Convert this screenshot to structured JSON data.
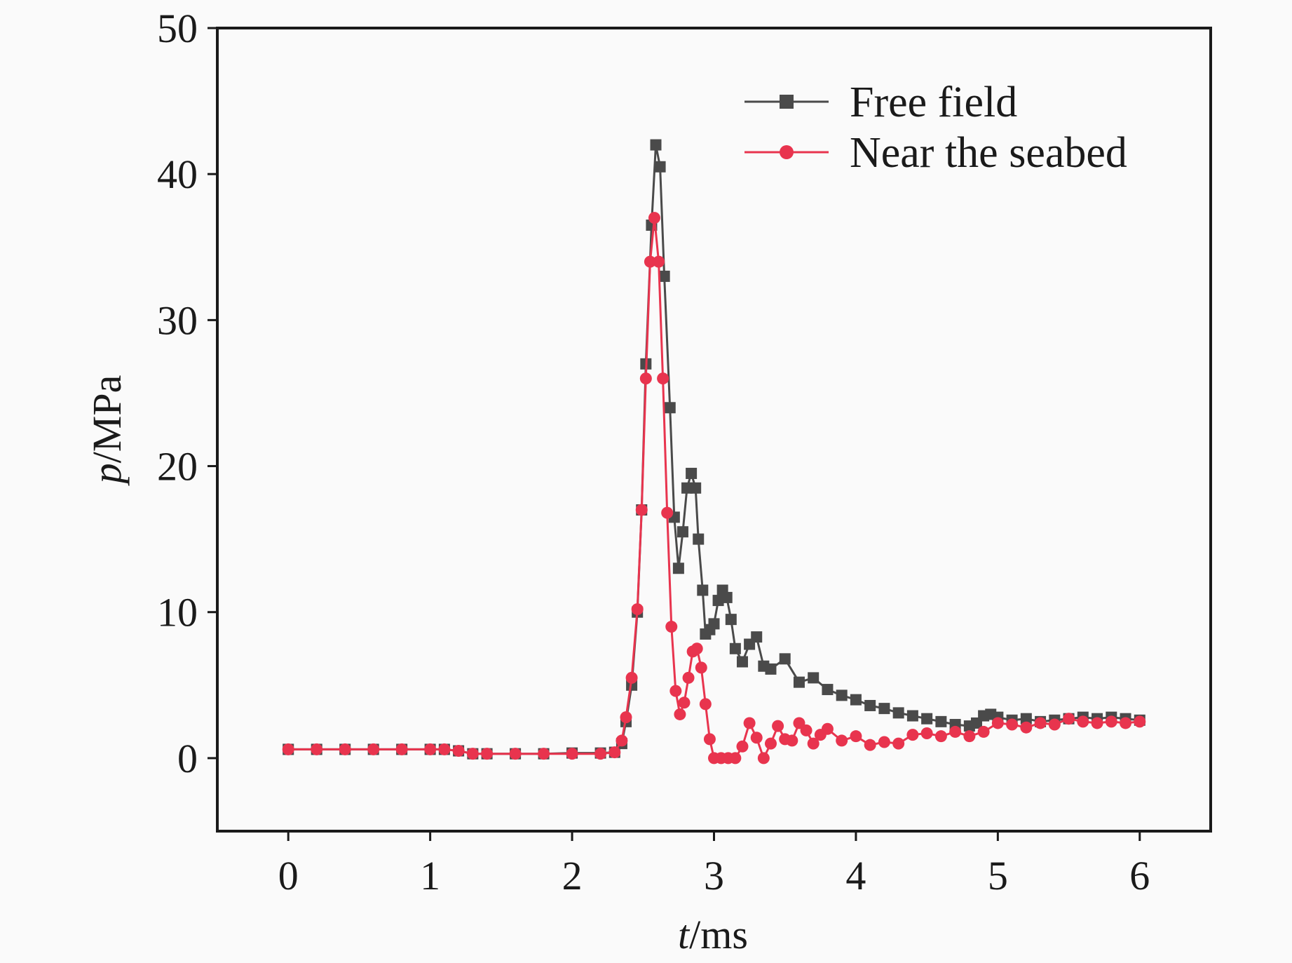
{
  "chart_data": {
    "type": "line",
    "title": "",
    "xlabel_var": "t",
    "xlabel_unit": "/ms",
    "ylabel_var": "p",
    "ylabel_unit": "/MPa",
    "xlim": [
      -0.5,
      6.5
    ],
    "ylim": [
      -5,
      50
    ],
    "xticks": [
      0,
      1,
      2,
      3,
      4,
      5,
      6
    ],
    "yticks": [
      0,
      10,
      20,
      30,
      40,
      50
    ],
    "xtick_labels": [
      "0",
      "1",
      "2",
      "3",
      "4",
      "5",
      "6"
    ],
    "ytick_labels": [
      "0",
      "10",
      "20",
      "30",
      "40",
      "50"
    ],
    "legend_position": "top-right",
    "grid": false,
    "series": [
      {
        "name": "Free field",
        "color": "#4a4a4a",
        "marker": "square",
        "x": [
          0,
          0.2,
          0.4,
          0.6,
          0.8,
          1.0,
          1.1,
          1.2,
          1.3,
          1.4,
          1.6,
          1.8,
          2.0,
          2.2,
          2.3,
          2.35,
          2.38,
          2.42,
          2.46,
          2.49,
          2.52,
          2.56,
          2.59,
          2.62,
          2.65,
          2.69,
          2.72,
          2.75,
          2.78,
          2.81,
          2.84,
          2.87,
          2.89,
          2.92,
          2.94,
          2.97,
          3.0,
          3.03,
          3.06,
          3.09,
          3.12,
          3.15,
          3.2,
          3.25,
          3.3,
          3.35,
          3.4,
          3.5,
          3.6,
          3.7,
          3.8,
          3.9,
          4.0,
          4.1,
          4.2,
          4.3,
          4.4,
          4.5,
          4.6,
          4.7,
          4.8,
          4.85,
          4.9,
          4.95,
          5.0,
          5.1,
          5.2,
          5.3,
          5.4,
          5.5,
          5.6,
          5.7,
          5.8,
          5.9,
          6.0
        ],
        "y": [
          0.6,
          0.6,
          0.6,
          0.6,
          0.6,
          0.6,
          0.6,
          0.5,
          0.3,
          0.3,
          0.3,
          0.3,
          0.35,
          0.35,
          0.4,
          1.0,
          2.5,
          5.0,
          10.0,
          17.0,
          27.0,
          36.5,
          42.0,
          40.5,
          33.0,
          24.0,
          16.5,
          13.0,
          15.5,
          18.5,
          19.5,
          18.5,
          15.0,
          11.5,
          8.5,
          8.8,
          9.2,
          10.8,
          11.5,
          11.0,
          9.5,
          7.5,
          6.6,
          7.8,
          8.3,
          6.3,
          6.1,
          6.8,
          5.2,
          5.5,
          4.7,
          4.3,
          4.0,
          3.6,
          3.4,
          3.1,
          2.9,
          2.7,
          2.5,
          2.3,
          2.2,
          2.4,
          2.9,
          3.0,
          2.8,
          2.6,
          2.7,
          2.5,
          2.6,
          2.7,
          2.8,
          2.7,
          2.8,
          2.7,
          2.6
        ]
      },
      {
        "name": "Near the seabed",
        "color": "#e8344e",
        "marker": "circle",
        "x": [
          0,
          0.2,
          0.4,
          0.6,
          0.8,
          1.0,
          1.1,
          1.2,
          1.3,
          1.4,
          1.6,
          1.8,
          2.0,
          2.2,
          2.3,
          2.35,
          2.38,
          2.42,
          2.46,
          2.49,
          2.52,
          2.55,
          2.58,
          2.61,
          2.64,
          2.67,
          2.7,
          2.73,
          2.76,
          2.79,
          2.82,
          2.85,
          2.88,
          2.91,
          2.94,
          2.97,
          3.0,
          3.05,
          3.1,
          3.15,
          3.2,
          3.25,
          3.3,
          3.35,
          3.4,
          3.45,
          3.5,
          3.55,
          3.6,
          3.65,
          3.7,
          3.75,
          3.8,
          3.9,
          4.0,
          4.1,
          4.2,
          4.3,
          4.4,
          4.5,
          4.6,
          4.7,
          4.8,
          4.9,
          5.0,
          5.1,
          5.2,
          5.3,
          5.4,
          5.5,
          5.6,
          5.7,
          5.8,
          5.9,
          6.0
        ],
        "y": [
          0.6,
          0.6,
          0.6,
          0.6,
          0.6,
          0.6,
          0.6,
          0.5,
          0.3,
          0.3,
          0.3,
          0.3,
          0.3,
          0.3,
          0.4,
          1.2,
          2.8,
          5.5,
          10.2,
          17.0,
          26.0,
          34.0,
          37.0,
          34.0,
          26.0,
          16.8,
          9.0,
          4.6,
          3.0,
          3.8,
          5.5,
          7.3,
          7.5,
          6.2,
          3.7,
          1.3,
          0.0,
          0.0,
          0.0,
          0.0,
          0.8,
          2.4,
          1.4,
          0.0,
          1.0,
          2.2,
          1.3,
          1.2,
          2.4,
          1.9,
          1.0,
          1.6,
          2.0,
          1.2,
          1.5,
          0.9,
          1.1,
          1.0,
          1.6,
          1.7,
          1.5,
          1.8,
          1.5,
          1.8,
          2.4,
          2.3,
          2.1,
          2.4,
          2.3,
          2.7,
          2.5,
          2.4,
          2.5,
          2.4,
          2.5
        ]
      }
    ]
  }
}
